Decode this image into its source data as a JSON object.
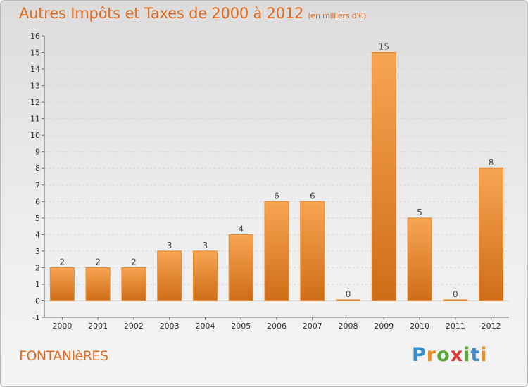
{
  "title": "Autres Impôts et Taxes de 2000 à 2012",
  "subtitle": "(en milliers d'€)",
  "location": "FONTANIèRES",
  "logo": {
    "letters": [
      "P",
      "r",
      "o",
      "x",
      "i",
      "t",
      "i"
    ],
    "colors": [
      "#3a8fd0",
      "#e8912b",
      "#5aa83a",
      "#d83b2e",
      "#5aa83a",
      "#3a8fd0",
      "#e8912b"
    ]
  },
  "colors": {
    "bar": "#e98a2e",
    "bar_light": "#f7a553",
    "bar_dark": "#cf6d17",
    "grid": "#d6d6d6",
    "text": "#e06a1e"
  },
  "chart_data": {
    "type": "bar",
    "categories": [
      "2000",
      "2001",
      "2002",
      "2003",
      "2004",
      "2005",
      "2006",
      "2007",
      "2008",
      "2009",
      "2010",
      "2011",
      "2012"
    ],
    "values": [
      2,
      2,
      2,
      3,
      3,
      4,
      6,
      6,
      0,
      15,
      5,
      0,
      8
    ],
    "data_labels": [
      "2",
      "2",
      "2",
      "3",
      "3",
      "4",
      "6",
      "6",
      "0",
      "15",
      "5",
      "0",
      "8"
    ],
    "ylim": [
      -1,
      16
    ],
    "yticks": [
      "-1",
      "0",
      "1",
      "2",
      "3",
      "4",
      "5",
      "6",
      "7",
      "8",
      "9",
      "10",
      "11",
      "12",
      "13",
      "14",
      "15",
      "16"
    ],
    "grid": true,
    "xlabel": "",
    "ylabel": ""
  }
}
